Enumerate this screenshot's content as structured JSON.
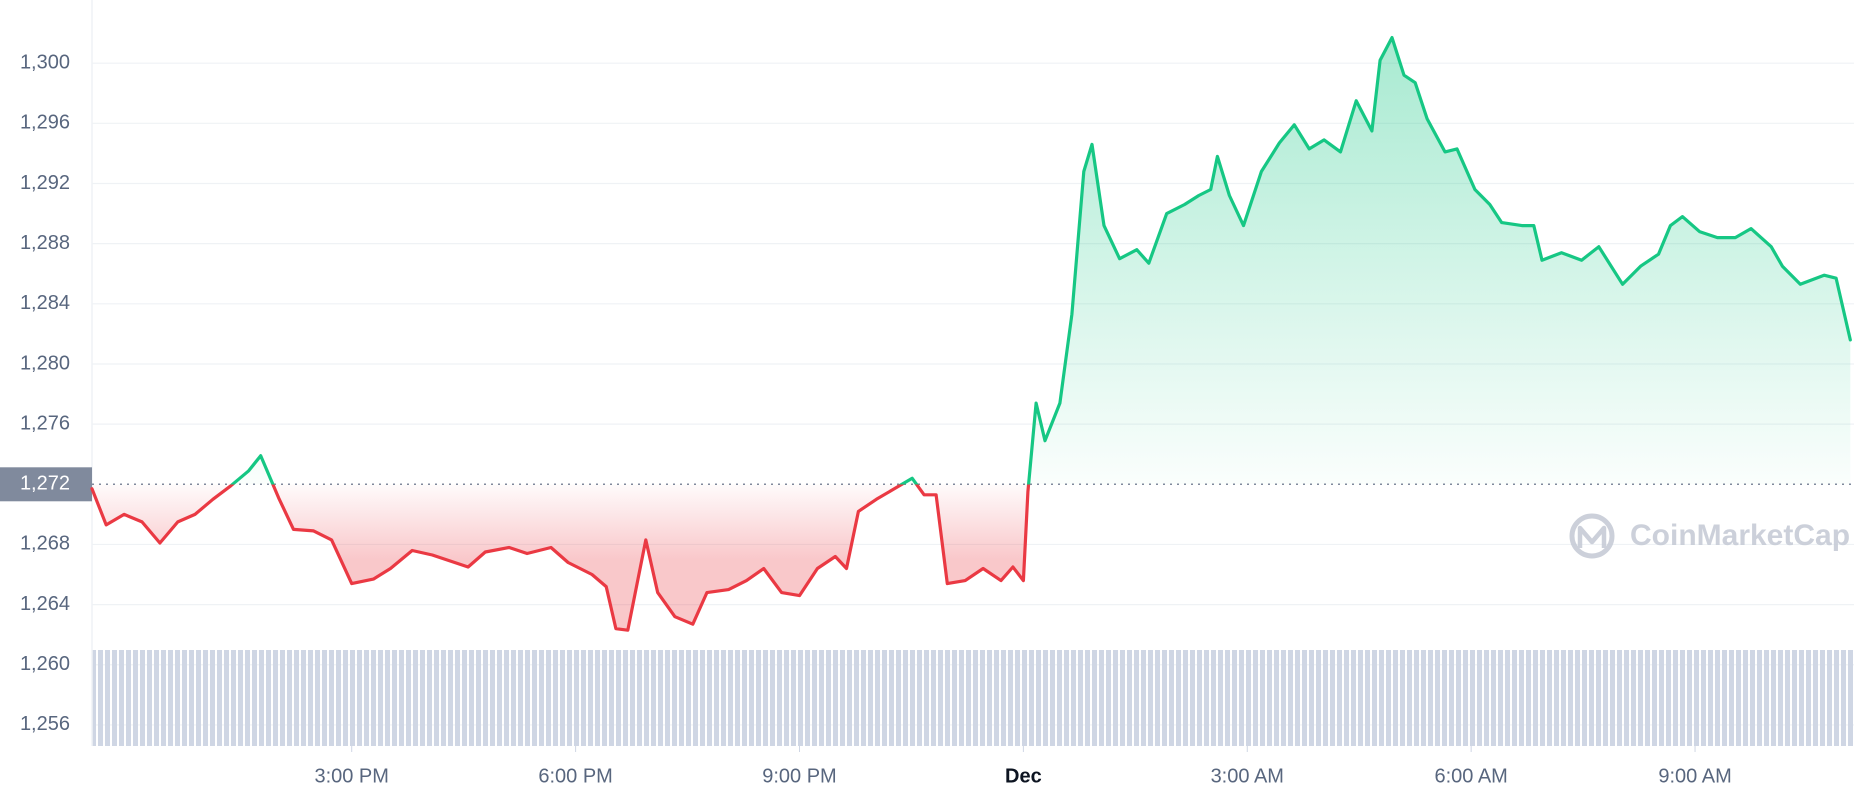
{
  "chart_data": {
    "type": "line",
    "x": [
      11.52,
      11.71,
      11.95,
      12.19,
      12.43,
      12.67,
      12.9,
      13.14,
      13.38,
      13.62,
      13.78,
      14.02,
      14.22,
      14.49,
      14.73,
      15.0,
      15.29,
      15.52,
      15.81,
      16.08,
      16.32,
      16.56,
      16.79,
      17.11,
      17.35,
      17.67,
      17.9,
      18.22,
      18.41,
      18.54,
      18.7,
      18.94,
      19.1,
      19.33,
      19.57,
      19.76,
      20.05,
      20.29,
      20.52,
      20.76,
      21.0,
      21.24,
      21.48,
      21.63,
      21.79,
      22.03,
      22.27,
      22.51,
      22.67,
      22.83,
      22.98,
      23.22,
      23.46,
      23.7,
      23.86,
      24.0,
      24.06,
      24.17,
      24.29,
      24.49,
      24.65,
      24.81,
      24.92,
      25.08,
      25.29,
      25.52,
      25.68,
      25.92,
      26.16,
      26.35,
      26.51,
      26.6,
      26.76,
      26.95,
      27.19,
      27.43,
      27.63,
      27.83,
      28.03,
      28.25,
      28.46,
      28.67,
      28.78,
      28.94,
      29.1,
      29.25,
      29.41,
      29.65,
      29.81,
      30.05,
      30.25,
      30.41,
      30.68,
      30.84,
      30.95,
      31.21,
      31.48,
      31.71,
      32.03,
      32.27,
      32.51,
      32.67,
      32.83,
      33.06,
      33.3,
      33.54,
      33.75,
      34.02,
      34.17,
      34.41,
      34.73,
      34.89,
      35.08
    ],
    "values": [
      1271.7,
      1269.3,
      1270.0,
      1269.5,
      1268.1,
      1269.5,
      1270.0,
      1271.0,
      1271.9,
      1272.9,
      1273.9,
      1271.1,
      1269.0,
      1268.9,
      1268.3,
      1265.4,
      1265.7,
      1266.4,
      1267.6,
      1267.3,
      1266.9,
      1266.5,
      1267.5,
      1267.8,
      1267.4,
      1267.8,
      1266.8,
      1266.0,
      1265.2,
      1262.4,
      1262.3,
      1268.3,
      1264.8,
      1263.2,
      1262.7,
      1264.8,
      1265.0,
      1265.6,
      1266.4,
      1264.8,
      1264.6,
      1266.4,
      1267.2,
      1266.4,
      1270.2,
      1271.0,
      1271.7,
      1272.4,
      1271.3,
      1271.3,
      1265.4,
      1265.6,
      1266.4,
      1265.6,
      1266.5,
      1265.6,
      1271.5,
      1277.4,
      1274.9,
      1277.4,
      1283.3,
      1292.8,
      1294.6,
      1289.2,
      1287.0,
      1287.6,
      1286.7,
      1290.0,
      1290.6,
      1291.2,
      1291.6,
      1293.8,
      1291.2,
      1289.2,
      1292.8,
      1294.7,
      1295.9,
      1294.3,
      1294.9,
      1294.1,
      1297.5,
      1295.5,
      1300.2,
      1301.7,
      1299.2,
      1298.7,
      1296.3,
      1294.1,
      1294.3,
      1291.6,
      1290.6,
      1289.4,
      1289.2,
      1289.2,
      1286.9,
      1287.4,
      1286.9,
      1287.8,
      1285.3,
      1286.5,
      1287.3,
      1289.2,
      1289.8,
      1288.8,
      1288.4,
      1288.4,
      1289.0,
      1287.8,
      1286.5,
      1285.3,
      1285.9,
      1285.7,
      1281.6
    ],
    "baseline": {
      "value": 1272,
      "label": "1,272"
    },
    "up_color": "#16c784",
    "down_color": "#ea3943",
    "xlim": [
      11.52,
      35.13
    ],
    "xticks": [
      {
        "value": 15,
        "label": "3:00 PM"
      },
      {
        "value": 18,
        "label": "6:00 PM"
      },
      {
        "value": 21,
        "label": "9:00 PM"
      },
      {
        "value": 24,
        "label": "Dec"
      },
      {
        "value": 27,
        "label": "3:00 AM"
      },
      {
        "value": 30,
        "label": "6:00 AM"
      },
      {
        "value": 33,
        "label": "9:00 AM"
      }
    ],
    "ylim": [
      1254.6,
      1304.2
    ],
    "yticks": [
      {
        "value": 1256,
        "label": "1,256"
      },
      {
        "value": 1260,
        "label": "1,260"
      },
      {
        "value": 1264,
        "label": "1,264"
      },
      {
        "value": 1268,
        "label": "1,268"
      },
      {
        "value": 1276,
        "label": "1,276"
      },
      {
        "value": 1280,
        "label": "1,280"
      },
      {
        "value": 1284,
        "label": "1,284"
      },
      {
        "value": 1288,
        "label": "1,288"
      },
      {
        "value": 1292,
        "label": "1,292"
      },
      {
        "value": 1296,
        "label": "1,296"
      },
      {
        "value": 1300,
        "label": "1,300"
      }
    ],
    "grid": true,
    "watermark": "CoinMarketCap"
  }
}
